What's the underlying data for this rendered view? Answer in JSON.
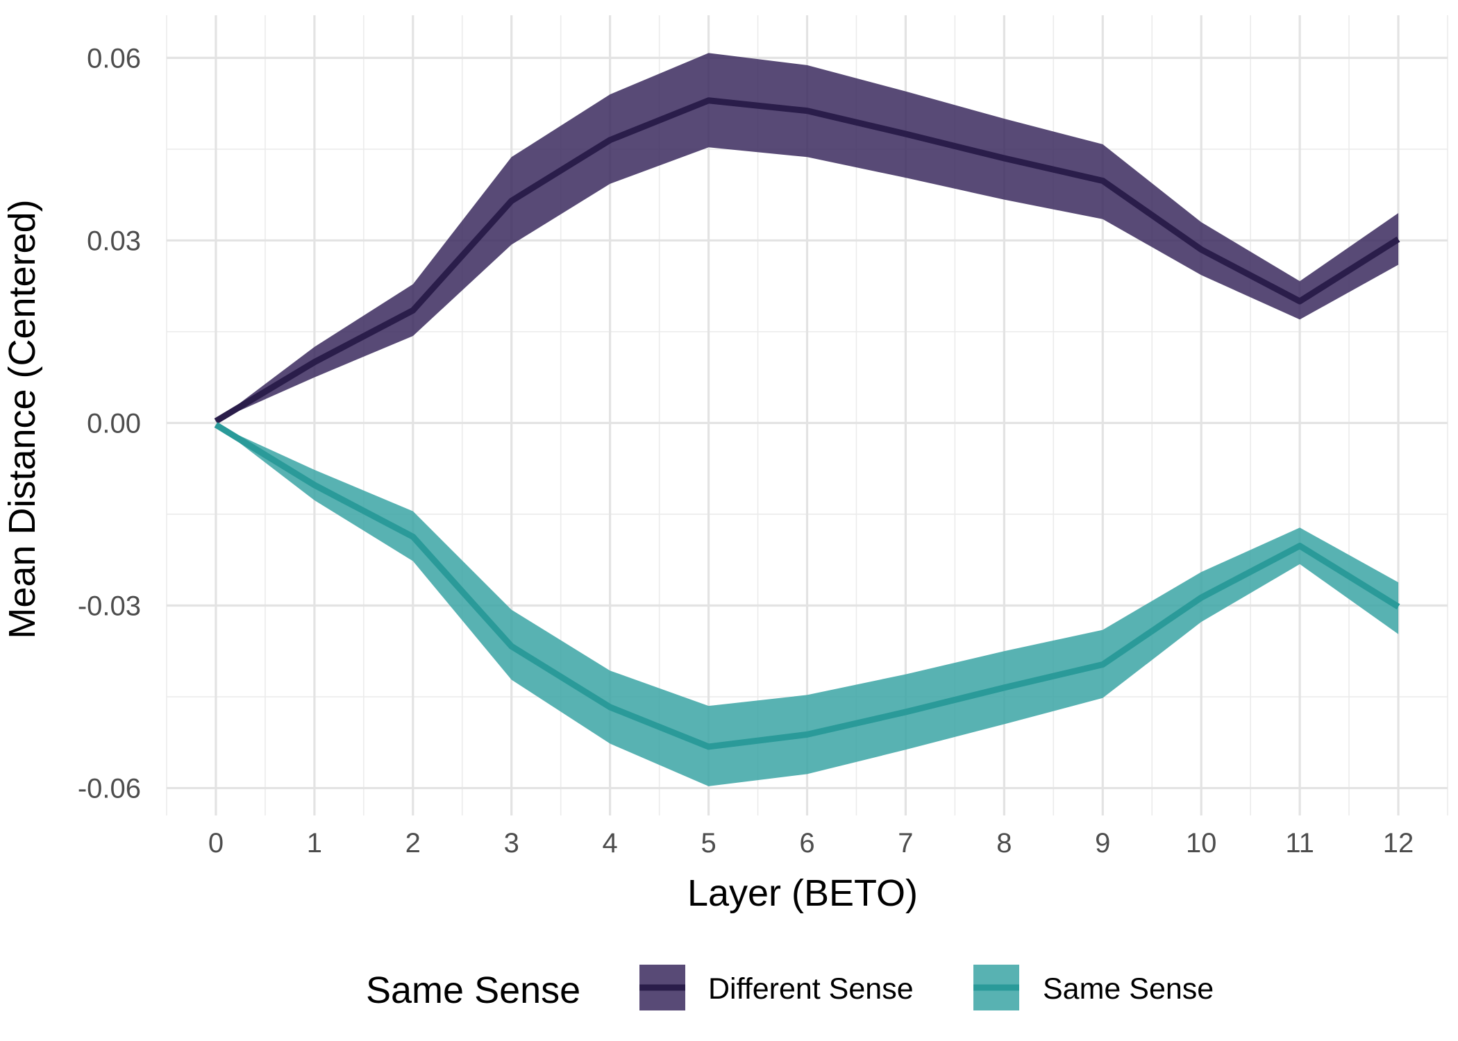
{
  "chart_data": {
    "type": "line",
    "xlabel": "Layer (BETO)",
    "ylabel": "Mean Distance (Centered)",
    "x": [
      0,
      1,
      2,
      3,
      4,
      5,
      6,
      7,
      8,
      9,
      10,
      11,
      12
    ],
    "xlim": [
      -0.5,
      12.5
    ],
    "ylim": [
      -0.0645,
      0.067
    ],
    "y_ticks": [
      -0.06,
      -0.03,
      0.0,
      0.03,
      0.06
    ],
    "y_tick_labels": [
      "-0.06",
      "-0.03",
      "0.00",
      "0.03",
      "0.06"
    ],
    "x_tick_labels": [
      "0",
      "1",
      "2",
      "3",
      "4",
      "5",
      "6",
      "7",
      "8",
      "9",
      "10",
      "11",
      "12"
    ],
    "grid": true,
    "legend": {
      "title": "Same Sense",
      "position": "bottom"
    },
    "series": [
      {
        "name": "Different Sense",
        "line_color": "#2a1d4a",
        "band_color": "#3b2a5e",
        "values": [
          0.0003,
          0.01,
          0.0185,
          0.0365,
          0.0465,
          0.053,
          0.0513,
          0.0475,
          0.0435,
          0.0398,
          0.0285,
          0.02,
          0.0302
        ],
        "lower": [
          0.0003,
          0.0075,
          0.0143,
          0.0293,
          0.0393,
          0.0453,
          0.0437,
          0.0403,
          0.0367,
          0.0335,
          0.0243,
          0.017,
          0.026
        ],
        "upper": [
          0.0003,
          0.0125,
          0.0228,
          0.0437,
          0.054,
          0.0608,
          0.0588,
          0.0545,
          0.05,
          0.0458,
          0.033,
          0.0233,
          0.0345
        ]
      },
      {
        "name": "Same Sense",
        "line_color": "#2a9a99",
        "band_color": "#3ba5a4",
        "values": [
          -0.0003,
          -0.0102,
          -0.0187,
          -0.0367,
          -0.0467,
          -0.0532,
          -0.0512,
          -0.0475,
          -0.0435,
          -0.0397,
          -0.0287,
          -0.0202,
          -0.0302
        ],
        "lower": [
          -0.0003,
          -0.0127,
          -0.0227,
          -0.0422,
          -0.0527,
          -0.0597,
          -0.0577,
          -0.0537,
          -0.0495,
          -0.0452,
          -0.0327,
          -0.0232,
          -0.0347
        ],
        "upper": [
          -0.0003,
          -0.0077,
          -0.0145,
          -0.0307,
          -0.0407,
          -0.0465,
          -0.0447,
          -0.0413,
          -0.0375,
          -0.034,
          -0.0245,
          -0.0172,
          -0.0262
        ]
      }
    ]
  }
}
